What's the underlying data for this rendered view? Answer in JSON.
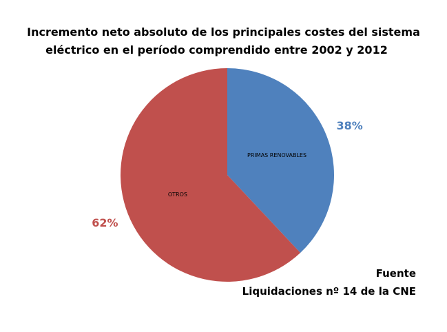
{
  "chart_data": {
    "type": "pie",
    "title_lines": [
      "Incremento neto absoluto de los principales costes del sistema",
      "eléctrico en el período comprendido entre 2002 y 2012"
    ],
    "slices": [
      {
        "label": "PRIMAS RENOVABLES",
        "value": 38,
        "value_label": "38%",
        "color": "#4F81BD"
      },
      {
        "label": "OTROS",
        "value": 62,
        "value_label": "62%",
        "color": "#C0504D"
      }
    ],
    "start": "12 o'clock",
    "direction": "clockwise"
  },
  "source": {
    "heading": "Fuente",
    "text": "Liquidaciones nº 14 de la CNE"
  }
}
